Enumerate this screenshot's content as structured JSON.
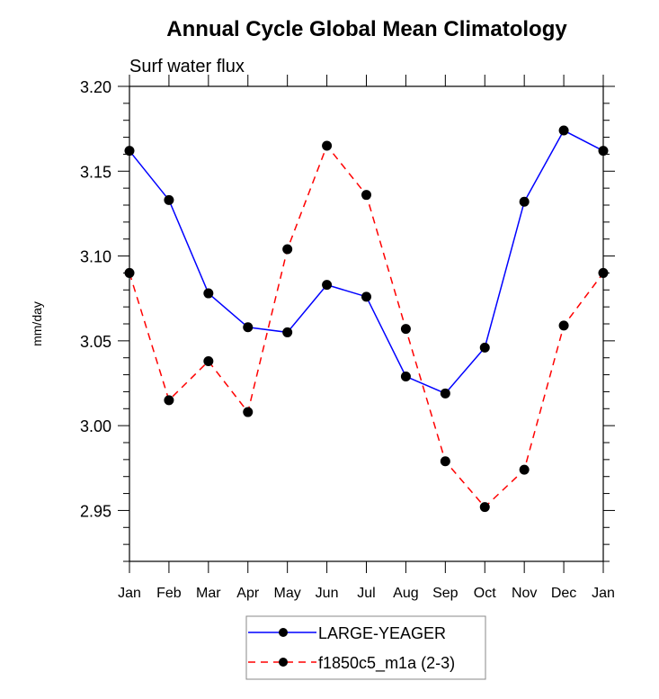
{
  "chart_data": {
    "type": "line",
    "title": "Annual Cycle Global Mean Climatology",
    "subtitle": "Surf water flux",
    "xlabel": "",
    "ylabel": "mm/day",
    "x": [
      "Jan",
      "Feb",
      "Mar",
      "Apr",
      "May",
      "Jun",
      "Jul",
      "Aug",
      "Sep",
      "Oct",
      "Nov",
      "Dec",
      "Jan"
    ],
    "ylim": [
      2.92,
      3.2
    ],
    "yticks": [
      2.95,
      3.0,
      3.05,
      3.1,
      3.15,
      3.2
    ],
    "ytick_labels": [
      "2.95",
      "3.00",
      "3.05",
      "3.10",
      "3.15",
      "3.20"
    ],
    "yminor_step": 0.01,
    "grid": false,
    "legend_position": "bottom-center",
    "series": [
      {
        "name": "LARGE-YEAGER",
        "color": "#0000ff",
        "dash": "solid",
        "marker": "filled-circle",
        "values": [
          3.162,
          3.133,
          3.078,
          3.058,
          3.055,
          3.083,
          3.076,
          3.029,
          3.019,
          3.046,
          3.132,
          3.174,
          3.162
        ]
      },
      {
        "name": "f1850c5_m1a (2-3)",
        "color": "#ff0000",
        "dash": "dashed",
        "marker": "filled-circle",
        "values": [
          3.09,
          3.015,
          3.038,
          3.008,
          3.104,
          3.165,
          3.136,
          3.057,
          2.979,
          2.952,
          2.974,
          3.059,
          3.09
        ]
      }
    ]
  }
}
